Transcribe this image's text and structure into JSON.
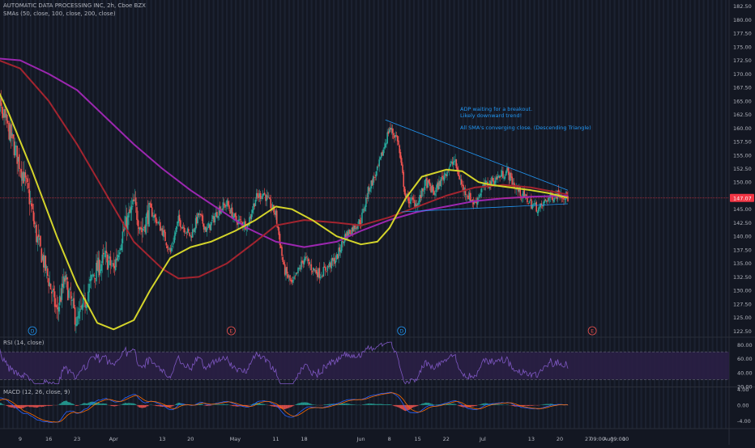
{
  "header": {
    "title": "AUTOMATIC DATA PROCESSING INC, 2h, Cboe BZX",
    "sma_legend": "SMAs (50, close, 100, close, 200, close)"
  },
  "annotation": {
    "line1": "ADP waiting for a breakout.",
    "line2": "Likely downward trend!",
    "line3": "All SMA's converging close. (Descending Triangle)"
  },
  "last_price_label": "147.07",
  "colors": {
    "background": "#131722",
    "up": "#26a69a",
    "down": "#ef5350",
    "sma50": "#d4d42a",
    "sma100": "#a3242f",
    "sma200": "#9c27b0",
    "trendline": "#2196f3",
    "rsi": "#7e57c2",
    "price_label": "#f23645"
  },
  "panes": {
    "rsi_label": "RSI (14, close)",
    "macd_label": "MACD (12, 26, close, 9)"
  },
  "markers": [
    {
      "label": "D",
      "x": "Mar 12",
      "color": "#2196f3"
    },
    {
      "label": "E",
      "x": "Apr 30",
      "color": "#ef5350"
    },
    {
      "label": "D",
      "x": "Jun 11",
      "color": "#2196f3"
    },
    {
      "label": "E",
      "x": "Jul 28",
      "color": "#ef5350"
    }
  ],
  "chart_data": [
    {
      "type": "candlestick",
      "title": "AUTOMATIC DATA PROCESSING INC, 2h, Cboe BZX",
      "x_tick_labels": [
        "9",
        "16",
        "23",
        "Apr",
        "13",
        "20",
        "May",
        "11",
        "18",
        "Jun",
        "8",
        "15",
        "22",
        "Jul",
        "13",
        "20",
        "27",
        "09:00",
        "Aug",
        "09:00",
        "10"
      ],
      "y_axis": {
        "min": 121.5,
        "max": 183.5,
        "ticks": [
          182.5,
          180.0,
          177.5,
          175.0,
          172.5,
          170.0,
          167.5,
          165.0,
          162.5,
          160.0,
          157.5,
          155.0,
          152.5,
          150.0,
          147.5,
          145.0,
          142.5,
          140.0,
          137.5,
          135.0,
          132.5,
          130.0,
          127.5,
          125.0,
          122.5
        ]
      },
      "price_anchors": [
        [
          "Mar 2",
          158
        ],
        [
          "Mar 4",
          164
        ],
        [
          "Mar 6",
          160
        ],
        [
          "Mar 9",
          153
        ],
        [
          "Mar 11",
          148
        ],
        [
          "Mar 13",
          140
        ],
        [
          "Mar 16",
          132
        ],
        [
          "Mar 18",
          126
        ],
        [
          "Mar 20",
          132
        ],
        [
          "Mar 23",
          124
        ],
        [
          "Mar 25",
          128
        ],
        [
          "Mar 27",
          133
        ],
        [
          "Mar 30",
          136
        ],
        [
          "Apr 1",
          134
        ],
        [
          "Apr 3",
          140
        ],
        [
          "Apr 6",
          146
        ],
        [
          "Apr 8",
          141
        ],
        [
          "Apr 10",
          145
        ],
        [
          "Apr 13",
          141
        ],
        [
          "Apr 15",
          137
        ],
        [
          "Apr 17",
          143
        ],
        [
          "Apr 20",
          140
        ],
        [
          "Apr 22",
          144
        ],
        [
          "Apr 24",
          141
        ],
        [
          "Apr 27",
          145
        ],
        [
          "Apr 29",
          146
        ],
        [
          "May 1",
          143
        ],
        [
          "May 4",
          142
        ],
        [
          "May 6",
          147
        ],
        [
          "May 8",
          148
        ],
        [
          "May 11",
          144
        ],
        [
          "May 13",
          134
        ],
        [
          "May 15",
          131
        ],
        [
          "May 18",
          136
        ],
        [
          "May 20",
          134
        ],
        [
          "May 22",
          133
        ],
        [
          "May 26",
          136
        ],
        [
          "May 28",
          140
        ],
        [
          "Jun 1",
          143
        ],
        [
          "Jun 3",
          149
        ],
        [
          "Jun 5",
          152
        ],
        [
          "Jun 8",
          160
        ],
        [
          "Jun 10",
          158
        ],
        [
          "Jun 12",
          147
        ],
        [
          "Jun 15",
          146
        ],
        [
          "Jun 17",
          150
        ],
        [
          "Jun 19",
          148
        ],
        [
          "Jun 22",
          152
        ],
        [
          "Jun 24",
          154
        ],
        [
          "Jun 26",
          149
        ],
        [
          "Jun 29",
          146
        ],
        [
          "Jul 1",
          149
        ],
        [
          "Jul 3",
          150
        ],
        [
          "Jul 7",
          152
        ],
        [
          "Jul 9",
          149
        ],
        [
          "Jul 13",
          146
        ],
        [
          "Jul 15",
          145
        ],
        [
          "Jul 17",
          147
        ],
        [
          "Jul 20",
          148
        ],
        [
          "Jul 22",
          147.07
        ]
      ],
      "sma50": [
        [
          "Mar 1",
          171
        ],
        [
          "Mar 6",
          163
        ],
        [
          "Mar 12",
          152
        ],
        [
          "Mar 18",
          140
        ],
        [
          "Mar 23",
          131
        ],
        [
          "Mar 28",
          124
        ],
        [
          "Apr 1",
          122.8
        ],
        [
          "Apr 6",
          124.5
        ],
        [
          "Apr 10",
          130
        ],
        [
          "Apr 15",
          136
        ],
        [
          "Apr 20",
          138
        ],
        [
          "Apr 25",
          139
        ],
        [
          "May 1",
          141
        ],
        [
          "May 6",
          143
        ],
        [
          "May 11",
          145.5
        ],
        [
          "May 15",
          145
        ],
        [
          "May 20",
          143
        ],
        [
          "May 26",
          140
        ],
        [
          "Jun 1",
          138.5
        ],
        [
          "Jun 5",
          139
        ],
        [
          "Jun 8",
          141.5
        ],
        [
          "Jun 12",
          147
        ],
        [
          "Jun 16",
          151
        ],
        [
          "Jun 22",
          152.3
        ],
        [
          "Jun 26",
          152
        ],
        [
          "Jun 30",
          150
        ],
        [
          "Jul 3",
          149.5
        ],
        [
          "Jul 8",
          149
        ],
        [
          "Jul 13",
          148.5
        ],
        [
          "Jul 17",
          148
        ],
        [
          "Jul 22",
          147.1
        ]
      ],
      "sma100": [
        [
          "Mar 1",
          173.3
        ],
        [
          "Mar 9",
          171
        ],
        [
          "Mar 16",
          165
        ],
        [
          "Mar 23",
          157
        ],
        [
          "Mar 30",
          148
        ],
        [
          "Apr 6",
          139
        ],
        [
          "Apr 13",
          134
        ],
        [
          "Apr 17",
          132.2
        ],
        [
          "Apr 22",
          132.5
        ],
        [
          "Apr 29",
          135
        ],
        [
          "May 6",
          139
        ],
        [
          "May 11",
          142
        ],
        [
          "May 18",
          143
        ],
        [
          "May 26",
          142.5
        ],
        [
          "Jun 1",
          142
        ],
        [
          "Jun 8",
          143.5
        ],
        [
          "Jun 15",
          145.5
        ],
        [
          "Jun 22",
          147.5
        ],
        [
          "Jun 29",
          149
        ],
        [
          "Jul 6",
          149.5
        ],
        [
          "Jul 13",
          149
        ],
        [
          "Jul 22",
          147.7
        ]
      ],
      "sma200": [
        [
          "Mar 1",
          173
        ],
        [
          "Mar 9",
          172.5
        ],
        [
          "Mar 16",
          170
        ],
        [
          "Mar 23",
          167
        ],
        [
          "Mar 30",
          162
        ],
        [
          "Apr 6",
          157
        ],
        [
          "Apr 13",
          152.5
        ],
        [
          "Apr 20",
          148.5
        ],
        [
          "Apr 27",
          145
        ],
        [
          "May 4",
          141.5
        ],
        [
          "May 11",
          139
        ],
        [
          "May 18",
          138
        ],
        [
          "May 26",
          139
        ],
        [
          "Jun 1",
          141
        ],
        [
          "Jun 8",
          143
        ],
        [
          "Jun 15",
          144.5
        ],
        [
          "Jun 22",
          145.5
        ],
        [
          "Jun 29",
          146.5
        ],
        [
          "Jul 6",
          147
        ],
        [
          "Jul 13",
          147.3
        ],
        [
          "Jul 22",
          147.5
        ]
      ],
      "trendlines": [
        {
          "name": "upper",
          "from": [
            "Jun 7",
            161.5
          ],
          "to": [
            "Jul 22",
            148.5
          ]
        },
        {
          "name": "lower",
          "from": [
            "Jun 11",
            144.5
          ],
          "to": [
            "Jul 22",
            146
          ]
        }
      ],
      "last_price": 147.07
    },
    {
      "type": "line",
      "title": "RSI (14, close)",
      "y_axis": {
        "min": 20,
        "max": 90,
        "ticks": [
          80.0,
          60.0,
          40.0,
          20.0
        ]
      },
      "bands": [
        70,
        30
      ],
      "x_range": [
        "Mar 1",
        "Jul 22"
      ]
    },
    {
      "type": "histogram",
      "title": "MACD (12, 26, close, 9)",
      "y_axis": {
        "min": -6,
        "max": 4.5,
        "ticks": [
          4.0,
          0.0,
          -4.0
        ]
      },
      "x_range": [
        "Mar 1",
        "Jul 22"
      ]
    }
  ]
}
